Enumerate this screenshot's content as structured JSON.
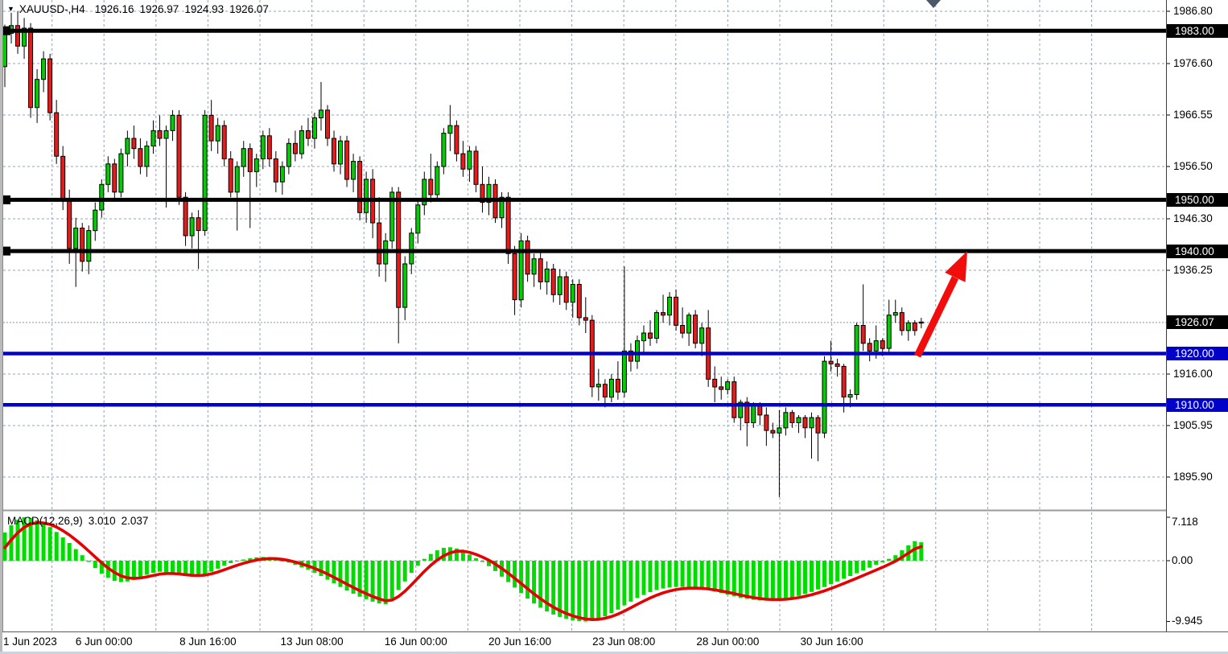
{
  "window": {
    "symbol_period": "XAUUSD-,H4",
    "quote_open": "1926.16",
    "quote_high": "1926.97",
    "quote_low": "1924.93",
    "quote_close": "1926.07"
  },
  "price_axis": {
    "ticks": [
      {
        "label": "1986.80",
        "value": 1986.8
      },
      {
        "label": "1976.60",
        "value": 1976.6
      },
      {
        "label": "1966.55",
        "value": 1966.55
      },
      {
        "label": "1956.50",
        "value": 1956.5
      },
      {
        "label": "1946.30",
        "value": 1946.3
      },
      {
        "label": "1936.25",
        "value": 1936.25
      },
      {
        "label": "1916.00",
        "value": 1916.0
      },
      {
        "label": "1905.95",
        "value": 1905.95
      },
      {
        "label": "1895.90",
        "value": 1895.9
      }
    ],
    "level_labels": [
      {
        "label": "1983.00",
        "value": 1983.0,
        "style": "black"
      },
      {
        "label": "1950.00",
        "value": 1950.0,
        "style": "black"
      },
      {
        "label": "1940.00",
        "value": 1940.0,
        "style": "black"
      },
      {
        "label": "1926.07",
        "value": 1926.07,
        "style": "black"
      },
      {
        "label": "1920.00",
        "value": 1920.0,
        "style": "blue"
      },
      {
        "label": "1910.00",
        "value": 1910.0,
        "style": "blue"
      }
    ]
  },
  "time_axis": {
    "labels": [
      "1 Jun 2023",
      "6 Jun 00:00",
      "8 Jun 16:00",
      "13 Jun 08:00",
      "16 Jun 00:00",
      "20 Jun 16:00",
      "23 Jun 08:00",
      "28 Jun 00:00",
      "30 Jun 16:00"
    ]
  },
  "indicator": {
    "label": "MACD(12,26,9)",
    "value_main": "3.010",
    "value_signal": "2.037",
    "ticks": [
      {
        "label": "7.118",
        "value": 7.118
      },
      {
        "label": "0.00",
        "value": 0
      },
      {
        "label": "-9.945",
        "value": -9.945
      }
    ]
  },
  "colors": {
    "bull": "#00ce00",
    "bear": "#e81b1b",
    "wick": "#000000",
    "hist": "#00dc00",
    "signal": "#e60000",
    "grid": "#94a3b3",
    "line_black": "#000000",
    "line_blue": "#0000c8",
    "arrow": "#f20d0d",
    "current_line": "#8a949e",
    "marker": "#4a5868"
  },
  "chart_data": [
    {
      "type": "candlestick",
      "title": "XAUUSD- H4",
      "ylim": [
        1892,
        1988
      ],
      "x_labels": [
        "1 Jun 2023",
        "6 Jun 00:00",
        "8 Jun 16:00",
        "13 Jun 08:00",
        "16 Jun 00:00",
        "20 Jun 16:00",
        "23 Jun 08:00",
        "28 Jun 00:00",
        "30 Jun 16:00"
      ],
      "current_price": 1926.07,
      "horizontal_lines": [
        {
          "price": 1983.0,
          "color": "black"
        },
        {
          "price": 1950.0,
          "color": "black"
        },
        {
          "price": 1940.0,
          "color": "black"
        },
        {
          "price": 1920.0,
          "color": "blue"
        },
        {
          "price": 1910.0,
          "color": "blue"
        }
      ],
      "annotation_arrow": {
        "from_price": 1920.0,
        "to_price": 1940.0,
        "direction": "up",
        "color": "red"
      },
      "ohlc": [
        [
          1976.0,
          1984.2,
          1972.0,
          1982.5
        ],
        [
          1982.5,
          1986.5,
          1980.5,
          1984.0
        ],
        [
          1984.0,
          1986.8,
          1978.5,
          1980.0
        ],
        [
          1980.0,
          1985.5,
          1977.5,
          1983.5
        ],
        [
          1983.5,
          1984.5,
          1966.0,
          1968.0
        ],
        [
          1968.0,
          1975.5,
          1965.0,
          1973.5
        ],
        [
          1973.5,
          1979.0,
          1971.0,
          1977.5
        ],
        [
          1977.5,
          1978.5,
          1965.5,
          1967.0
        ],
        [
          1967.0,
          1969.5,
          1957.0,
          1958.5
        ],
        [
          1958.5,
          1960.5,
          1948.0,
          1950.0
        ],
        [
          1950.0,
          1952.0,
          1937.5,
          1940.5
        ],
        [
          1940.5,
          1946.5,
          1933.0,
          1944.5
        ],
        [
          1944.5,
          1945.5,
          1936.0,
          1938.0
        ],
        [
          1938.0,
          1945.0,
          1935.5,
          1944.0
        ],
        [
          1944.0,
          1949.5,
          1942.0,
          1948.0
        ],
        [
          1948.0,
          1954.0,
          1946.5,
          1953.0
        ],
        [
          1953.0,
          1958.5,
          1951.5,
          1957.0
        ],
        [
          1957.0,
          1958.0,
          1950.0,
          1951.5
        ],
        [
          1951.5,
          1960.0,
          1950.5,
          1959.0
        ],
        [
          1959.0,
          1963.5,
          1956.5,
          1962.0
        ],
        [
          1962.0,
          1964.5,
          1958.0,
          1960.0
        ],
        [
          1960.0,
          1962.0,
          1955.0,
          1956.5
        ],
        [
          1956.5,
          1961.5,
          1954.5,
          1960.5
        ],
        [
          1960.5,
          1965.5,
          1959.0,
          1963.5
        ],
        [
          1963.5,
          1966.5,
          1960.5,
          1962.0
        ],
        [
          1962.0,
          1964.5,
          1948.5,
          1963.5
        ],
        [
          1963.5,
          1967.5,
          1961.5,
          1966.5
        ],
        [
          1966.5,
          1967.5,
          1949.0,
          1950.5
        ],
        [
          1950.5,
          1951.5,
          1941.0,
          1943.0
        ],
        [
          1943.0,
          1947.5,
          1940.5,
          1946.5
        ],
        [
          1946.5,
          1948.0,
          1936.5,
          1944.0
        ],
        [
          1944.0,
          1967.5,
          1943.0,
          1966.5
        ],
        [
          1966.5,
          1969.5,
          1959.5,
          1961.5
        ],
        [
          1961.5,
          1966.0,
          1959.0,
          1964.5
        ],
        [
          1964.5,
          1965.5,
          1956.5,
          1958.0
        ],
        [
          1958.0,
          1959.5,
          1950.5,
          1951.5
        ],
        [
          1951.5,
          1957.5,
          1944.0,
          1956.5
        ],
        [
          1956.5,
          1961.5,
          1954.5,
          1960.0
        ],
        [
          1960.0,
          1961.0,
          1944.5,
          1955.5
        ],
        [
          1955.5,
          1959.0,
          1952.5,
          1958.0
        ],
        [
          1958.0,
          1963.5,
          1956.0,
          1962.5
        ],
        [
          1962.5,
          1964.0,
          1956.5,
          1958.0
        ],
        [
          1958.0,
          1959.5,
          1951.5,
          1953.5
        ],
        [
          1953.5,
          1957.5,
          1951.0,
          1956.5
        ],
        [
          1956.5,
          1962.0,
          1955.0,
          1961.0
        ],
        [
          1961.0,
          1963.5,
          1957.5,
          1959.0
        ],
        [
          1959.0,
          1964.5,
          1958.0,
          1963.5
        ],
        [
          1963.5,
          1966.0,
          1960.5,
          1962.0
        ],
        [
          1962.0,
          1967.0,
          1960.0,
          1966.0
        ],
        [
          1966.0,
          1973.0,
          1963.5,
          1967.5
        ],
        [
          1967.5,
          1968.5,
          1960.5,
          1962.0
        ],
        [
          1962.0,
          1963.5,
          1955.5,
          1957.0
        ],
        [
          1957.0,
          1962.5,
          1955.0,
          1961.5
        ],
        [
          1961.5,
          1962.5,
          1952.5,
          1954.0
        ],
        [
          1954.0,
          1959.0,
          1951.5,
          1957.5
        ],
        [
          1957.5,
          1958.5,
          1946.0,
          1947.5
        ],
        [
          1947.5,
          1955.5,
          1945.5,
          1954.0
        ],
        [
          1954.0,
          1956.0,
          1942.5,
          1945.5
        ],
        [
          1945.5,
          1950.5,
          1935.0,
          1937.5
        ],
        [
          1937.5,
          1943.5,
          1934.0,
          1942.0
        ],
        [
          1942.0,
          1952.5,
          1940.5,
          1951.5
        ],
        [
          1951.5,
          1952.5,
          1922.0,
          1929.0
        ],
        [
          1929.0,
          1939.0,
          1926.5,
          1937.5
        ],
        [
          1937.5,
          1944.5,
          1935.5,
          1943.5
        ],
        [
          1943.5,
          1950.0,
          1941.5,
          1949.0
        ],
        [
          1949.0,
          1955.5,
          1947.0,
          1954.0
        ],
        [
          1954.0,
          1959.0,
          1949.5,
          1951.0
        ],
        [
          1951.0,
          1957.5,
          1950.0,
          1956.5
        ],
        [
          1956.5,
          1964.0,
          1955.0,
          1963.0
        ],
        [
          1963.0,
          1968.5,
          1959.5,
          1964.5
        ],
        [
          1964.5,
          1965.5,
          1957.5,
          1959.0
        ],
        [
          1959.0,
          1961.5,
          1954.5,
          1956.0
        ],
        [
          1956.0,
          1960.5,
          1953.5,
          1959.5
        ],
        [
          1959.5,
          1960.5,
          1951.5,
          1953.0
        ],
        [
          1953.0,
          1956.5,
          1947.5,
          1949.5
        ],
        [
          1949.5,
          1954.5,
          1947.0,
          1953.0
        ],
        [
          1953.0,
          1954.0,
          1945.5,
          1946.5
        ],
        [
          1946.5,
          1951.5,
          1944.5,
          1950.5
        ],
        [
          1950.5,
          1951.5,
          1937.5,
          1939.5
        ],
        [
          1939.5,
          1941.0,
          1927.5,
          1930.5
        ],
        [
          1930.5,
          1943.5,
          1929.0,
          1942.0
        ],
        [
          1942.0,
          1943.0,
          1934.0,
          1935.5
        ],
        [
          1935.5,
          1939.5,
          1933.0,
          1938.5
        ],
        [
          1938.5,
          1940.0,
          1932.5,
          1934.0
        ],
        [
          1934.0,
          1938.0,
          1931.5,
          1936.5
        ],
        [
          1936.5,
          1937.5,
          1930.0,
          1931.5
        ],
        [
          1931.5,
          1936.5,
          1929.5,
          1935.0
        ],
        [
          1935.0,
          1936.0,
          1928.5,
          1930.0
        ],
        [
          1930.0,
          1934.5,
          1927.0,
          1933.5
        ],
        [
          1933.5,
          1934.5,
          1925.5,
          1927.0
        ],
        [
          1927.0,
          1931.0,
          1924.0,
          1926.5
        ],
        [
          1926.5,
          1927.5,
          1911.5,
          1913.5
        ],
        [
          1913.5,
          1917.0,
          1910.8,
          1914.0
        ],
        [
          1914.0,
          1915.0,
          1909.5,
          1911.5
        ],
        [
          1911.5,
          1916.0,
          1910.5,
          1915.0
        ],
        [
          1915.0,
          1918.5,
          1911.0,
          1912.5
        ],
        [
          1912.5,
          1937.0,
          1911.5,
          1920.5
        ],
        [
          1920.5,
          1922.0,
          1916.5,
          1918.5
        ],
        [
          1918.5,
          1923.5,
          1917.0,
          1922.5
        ],
        [
          1922.5,
          1925.5,
          1920.0,
          1924.0
        ],
        [
          1924.0,
          1926.5,
          1921.5,
          1923.0
        ],
        [
          1923.0,
          1928.5,
          1922.0,
          1928.0
        ],
        [
          1928.0,
          1931.5,
          1926.0,
          1927.5
        ],
        [
          1927.5,
          1932.0,
          1925.5,
          1931.0
        ],
        [
          1931.0,
          1932.5,
          1924.5,
          1925.5
        ],
        [
          1925.5,
          1929.0,
          1923.0,
          1924.0
        ],
        [
          1924.0,
          1928.0,
          1921.5,
          1927.5
        ],
        [
          1927.5,
          1928.5,
          1921.0,
          1922.0
        ],
        [
          1922.0,
          1926.0,
          1919.5,
          1925.0
        ],
        [
          1925.0,
          1928.5,
          1913.5,
          1915.0
        ],
        [
          1915.0,
          1917.5,
          1910.5,
          1913.5
        ],
        [
          1913.5,
          1915.5,
          1911.0,
          1913.0
        ],
        [
          1913.0,
          1915.0,
          1912.0,
          1914.5
        ],
        [
          1914.5,
          1915.5,
          1906.5,
          1907.5
        ],
        [
          1907.5,
          1911.0,
          1905.0,
          1910.5
        ],
        [
          1910.5,
          1911.5,
          1901.9,
          1906.5
        ],
        [
          1906.5,
          1910.5,
          1905.5,
          1910.0
        ],
        [
          1910.0,
          1910.5,
          1906.0,
          1908.0
        ],
        [
          1908.0,
          1909.5,
          1902.0,
          1905.0
        ],
        [
          1905.0,
          1906.5,
          1903.5,
          1904.5
        ],
        [
          1904.5,
          1909.0,
          1892.0,
          1905.5
        ],
        [
          1905.5,
          1909.5,
          1904.0,
          1908.5
        ],
        [
          1908.5,
          1909.0,
          1905.5,
          1906.5
        ],
        [
          1906.5,
          1908.0,
          1904.5,
          1907.5
        ],
        [
          1907.5,
          1908.0,
          1903.5,
          1905.5
        ],
        [
          1905.5,
          1908.5,
          1899.5,
          1907.5
        ],
        [
          1907.5,
          1908.0,
          1899.0,
          1904.5
        ],
        [
          1904.5,
          1919.5,
          1903.5,
          1918.5
        ],
        [
          1918.5,
          1922.5,
          1916.5,
          1918.0
        ],
        [
          1918.0,
          1919.0,
          1915.5,
          1917.5
        ],
        [
          1917.5,
          1918.0,
          1908.5,
          1911.5
        ],
        [
          1911.5,
          1913.0,
          1909.5,
          1912.0
        ],
        [
          1912.0,
          1926.0,
          1911.0,
          1925.5
        ],
        [
          1925.5,
          1933.5,
          1920.5,
          1922.0
        ],
        [
          1922.0,
          1923.0,
          1918.5,
          1920.5
        ],
        [
          1920.5,
          1925.5,
          1919.0,
          1922.5
        ],
        [
          1922.5,
          1923.0,
          1919.5,
          1921.0
        ],
        [
          1921.0,
          1930.5,
          1920.0,
          1927.5
        ],
        [
          1927.5,
          1930.5,
          1926.0,
          1928.0
        ],
        [
          1928.0,
          1929.0,
          1923.5,
          1924.5
        ],
        [
          1924.5,
          1926.5,
          1922.5,
          1926.0
        ],
        [
          1926.0,
          1926.5,
          1923.5,
          1924.5
        ],
        [
          1926.16,
          1926.97,
          1924.93,
          1926.07
        ]
      ]
    },
    {
      "type": "bar",
      "title": "MACD(12,26,9)",
      "ylim": [
        -9.945,
        7.118
      ],
      "last_main": 3.01,
      "last_signal": 2.037,
      "signal_seed": 0.8,
      "signal_alpha": 0.35,
      "histogram": [
        4.6,
        5.8,
        6.7,
        7.118,
        7.0,
        6.6,
        6.1,
        5.5,
        4.7,
        3.8,
        2.9,
        1.9,
        0.9,
        -0.2,
        -1.2,
        -2.1,
        -2.8,
        -3.3,
        -3.5,
        -3.4,
        -3.1,
        -2.7,
        -2.3,
        -2.0,
        -1.8,
        -1.9,
        -2.1,
        -2.3,
        -2.5,
        -2.6,
        -2.5,
        -2.2,
        -1.8,
        -1.3,
        -0.8,
        -0.4,
        -0.1,
        0.2,
        0.4,
        0.55,
        0.6,
        0.5,
        0.3,
        0.0,
        -0.3,
        -0.7,
        -1.1,
        -1.5,
        -2.0,
        -2.5,
        -3.1,
        -3.7,
        -4.3,
        -4.9,
        -5.4,
        -5.9,
        -6.3,
        -6.7,
        -7.0,
        -7.1,
        -6.2,
        -4.8,
        -3.4,
        -2.0,
        -0.8,
        0.3,
        1.1,
        1.7,
        2.1,
        2.2,
        2.0,
        1.6,
        1.0,
        0.4,
        -0.2,
        -0.9,
        -1.7,
        -2.6,
        -3.5,
        -4.4,
        -5.3,
        -6.2,
        -7.0,
        -7.7,
        -8.3,
        -8.8,
        -9.2,
        -9.5,
        -9.75,
        -9.9,
        -9.945,
        -9.8,
        -9.5,
        -9.1,
        -8.6,
        -8.0,
        -7.3,
        -6.7,
        -6.1,
        -5.6,
        -5.15,
        -4.8,
        -4.55,
        -4.4,
        -4.3,
        -4.3,
        -4.35,
        -4.45,
        -4.6,
        -4.8,
        -5.05,
        -5.3,
        -5.55,
        -5.8,
        -6.05,
        -6.25,
        -6.4,
        -6.5,
        -6.5,
        -6.45,
        -6.35,
        -6.2,
        -6.0,
        -5.75,
        -5.45,
        -5.1,
        -4.7,
        -4.3,
        -3.85,
        -3.4,
        -2.95,
        -2.5,
        -2.05,
        -1.6,
        -1.15,
        -0.7,
        -0.25,
        0.3,
        0.9,
        1.7,
        2.5,
        3.2,
        3.01
      ]
    }
  ]
}
